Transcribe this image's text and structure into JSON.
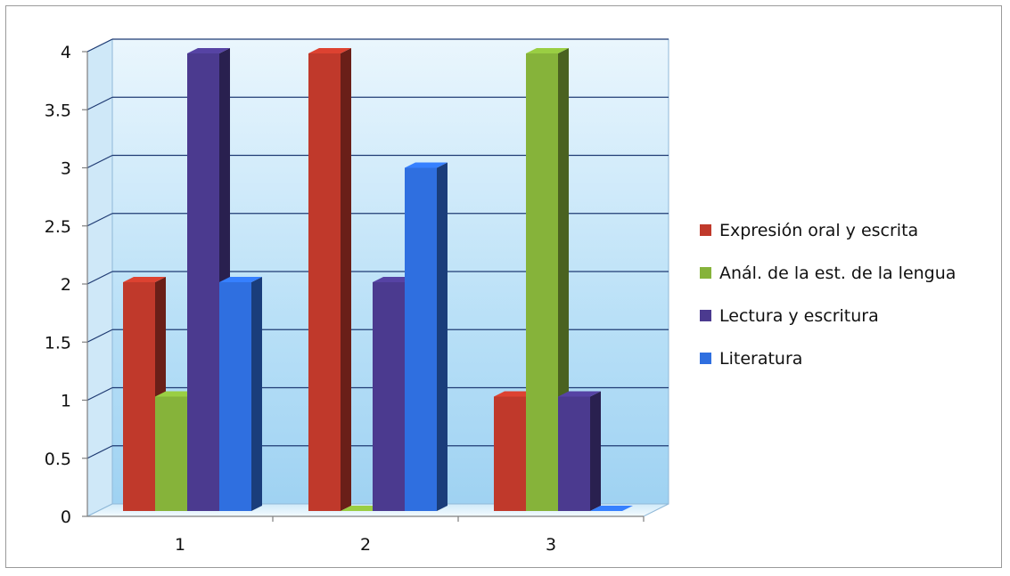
{
  "chart_data": {
    "type": "bar",
    "title": "",
    "xlabel": "",
    "ylabel": "",
    "categories": [
      "1",
      "2",
      "3"
    ],
    "ylim": [
      0,
      4
    ],
    "y_ticks": [
      "0",
      "0.5",
      "1",
      "1.5",
      "2",
      "2.5",
      "3",
      "3.5",
      "4"
    ],
    "grid": true,
    "three_d": true,
    "legend_position": "right",
    "series": [
      {
        "name": "Expresión oral y escrita",
        "values": [
          2,
          4,
          1
        ],
        "color": "#c0392b"
      },
      {
        "name": "Anál. de la est. de la lengua",
        "values": [
          1,
          0,
          4
        ],
        "color": "#86b33a"
      },
      {
        "name": "Lectura y escritura",
        "values": [
          4,
          2,
          1
        ],
        "color": "#4b3a8f"
      },
      {
        "name": "Literatura",
        "values": [
          2,
          3,
          0
        ],
        "color": "#2f6fe0"
      }
    ]
  }
}
